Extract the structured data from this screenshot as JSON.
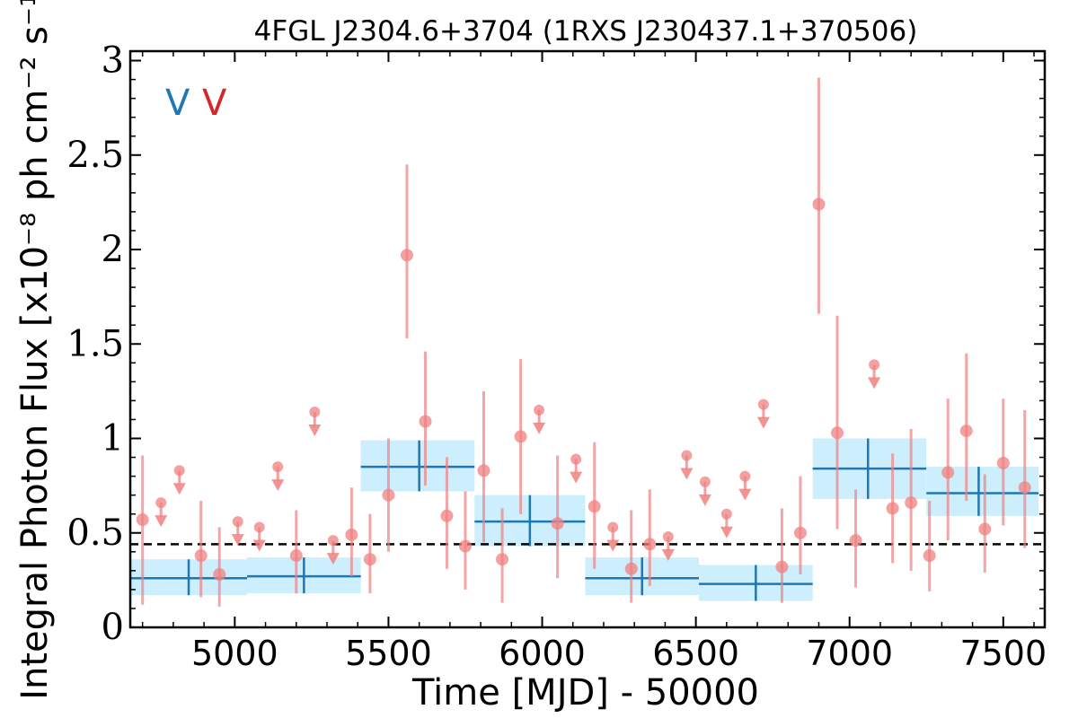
{
  "chart_data": {
    "type": "scatter",
    "title": "4FGL J2304.6+3704 (1RXS J230437.1+370506)",
    "xlabel": "Time [MJD] - 50000",
    "ylabel": "Integral Photon Flux [x10⁻⁸ ph cm⁻² s⁻¹]",
    "xlim": [
      4660,
      7635
    ],
    "ylim": [
      0,
      3.05
    ],
    "x_ticks": [
      5000,
      5500,
      6000,
      6500,
      7000,
      7500
    ],
    "x_tick_labels": [
      "5000",
      "5500",
      "6000",
      "6500",
      "7000",
      "7500"
    ],
    "y_ticks": [
      0,
      0.5,
      1,
      1.5,
      2,
      2.5,
      3
    ],
    "y_tick_labels": [
      "0",
      "0.5",
      "1",
      "1.5",
      "2",
      "2.5",
      "3"
    ],
    "grid": false,
    "legend_labels": [
      {
        "text": "V",
        "color": "#1f77b4"
      },
      {
        "text": "V",
        "color": "#d62728"
      }
    ],
    "colors": {
      "points": "#f08080",
      "bins": "#1f77b4",
      "bin_band": "#cdeefc",
      "mean_line": "#000000"
    },
    "mean_flux": 0.44,
    "detections": [
      {
        "x": 4700,
        "y": 0.57,
        "lo": 0.12,
        "hi": 0.91
      },
      {
        "x": 4890,
        "y": 0.38,
        "lo": 0.16,
        "hi": 0.67
      },
      {
        "x": 4950,
        "y": 0.28,
        "lo": 0.11,
        "hi": 0.53
      },
      {
        "x": 5200,
        "y": 0.38,
        "lo": 0.18,
        "hi": 0.62
      },
      {
        "x": 5380,
        "y": 0.49,
        "lo": 0.27,
        "hi": 0.74
      },
      {
        "x": 5440,
        "y": 0.36,
        "lo": 0.18,
        "hi": 0.6
      },
      {
        "x": 5500,
        "y": 0.7,
        "lo": 0.4,
        "hi": 1.0
      },
      {
        "x": 5560,
        "y": 1.97,
        "lo": 1.53,
        "hi": 2.45
      },
      {
        "x": 5620,
        "y": 1.09,
        "lo": 0.75,
        "hi": 1.46
      },
      {
        "x": 5690,
        "y": 0.59,
        "lo": 0.31,
        "hi": 0.9
      },
      {
        "x": 5750,
        "y": 0.43,
        "lo": 0.2,
        "hi": 0.72
      },
      {
        "x": 5810,
        "y": 0.83,
        "lo": 0.45,
        "hi": 1.25
      },
      {
        "x": 5870,
        "y": 0.36,
        "lo": 0.13,
        "hi": 0.63
      },
      {
        "x": 5930,
        "y": 1.01,
        "lo": 0.6,
        "hi": 1.42
      },
      {
        "x": 6050,
        "y": 0.55,
        "lo": 0.26,
        "hi": 0.91
      },
      {
        "x": 6170,
        "y": 0.64,
        "lo": 0.31,
        "hi": 0.98
      },
      {
        "x": 6290,
        "y": 0.31,
        "lo": 0.13,
        "hi": 0.62
      },
      {
        "x": 6350,
        "y": 0.44,
        "lo": 0.22,
        "hi": 0.73
      },
      {
        "x": 6780,
        "y": 0.32,
        "lo": 0.13,
        "hi": 0.63
      },
      {
        "x": 6840,
        "y": 0.5,
        "lo": 0.28,
        "hi": 0.8
      },
      {
        "x": 6900,
        "y": 2.24,
        "lo": 1.66,
        "hi": 2.91
      },
      {
        "x": 6960,
        "y": 1.03,
        "lo": 0.52,
        "hi": 1.65
      },
      {
        "x": 7020,
        "y": 0.46,
        "lo": 0.21,
        "hi": 0.73
      },
      {
        "x": 7140,
        "y": 0.63,
        "lo": 0.34,
        "hi": 0.92
      },
      {
        "x": 7200,
        "y": 0.66,
        "lo": 0.3,
        "hi": 1.05
      },
      {
        "x": 7260,
        "y": 0.38,
        "lo": 0.19,
        "hi": 0.67
      },
      {
        "x": 7320,
        "y": 0.82,
        "lo": 0.46,
        "hi": 1.21
      },
      {
        "x": 7380,
        "y": 1.04,
        "lo": 0.67,
        "hi": 1.45
      },
      {
        "x": 7440,
        "y": 0.52,
        "lo": 0.29,
        "hi": 0.81
      },
      {
        "x": 7500,
        "y": 0.87,
        "lo": 0.54,
        "hi": 1.21
      },
      {
        "x": 7570,
        "y": 0.74,
        "lo": 0.42,
        "hi": 1.15
      }
    ],
    "upper_limits": [
      {
        "x": 4760,
        "y": 0.66
      },
      {
        "x": 4820,
        "y": 0.83
      },
      {
        "x": 5010,
        "y": 0.56
      },
      {
        "x": 5080,
        "y": 0.53
      },
      {
        "x": 5140,
        "y": 0.85
      },
      {
        "x": 5260,
        "y": 1.14
      },
      {
        "x": 5320,
        "y": 0.46
      },
      {
        "x": 5990,
        "y": 1.15
      },
      {
        "x": 6110,
        "y": 0.89
      },
      {
        "x": 6230,
        "y": 0.53
      },
      {
        "x": 6410,
        "y": 0.48
      },
      {
        "x": 6470,
        "y": 0.91
      },
      {
        "x": 6530,
        "y": 0.77
      },
      {
        "x": 6600,
        "y": 0.6
      },
      {
        "x": 6660,
        "y": 0.8
      },
      {
        "x": 6720,
        "y": 1.18
      },
      {
        "x": 7080,
        "y": 1.39
      }
    ],
    "bins": [
      {
        "x0": 4660,
        "x1": 5040,
        "xc": 4850,
        "y": 0.26,
        "ylo": 0.17,
        "yhi": 0.36
      },
      {
        "x0": 5040,
        "x1": 5410,
        "xc": 5225,
        "y": 0.27,
        "ylo": 0.18,
        "yhi": 0.37
      },
      {
        "x0": 5410,
        "x1": 5780,
        "xc": 5600,
        "y": 0.85,
        "ylo": 0.72,
        "yhi": 0.99
      },
      {
        "x0": 5780,
        "x1": 6140,
        "xc": 5960,
        "y": 0.56,
        "ylo": 0.43,
        "yhi": 0.7
      },
      {
        "x0": 6140,
        "x1": 6510,
        "xc": 6325,
        "y": 0.26,
        "ylo": 0.17,
        "yhi": 0.37
      },
      {
        "x0": 6510,
        "x1": 6880,
        "xc": 6695,
        "y": 0.23,
        "ylo": 0.14,
        "yhi": 0.33
      },
      {
        "x0": 6880,
        "x1": 7250,
        "xc": 7060,
        "y": 0.84,
        "ylo": 0.68,
        "yhi": 1.0
      },
      {
        "x0": 7250,
        "x1": 7615,
        "xc": 7420,
        "y": 0.71,
        "ylo": 0.59,
        "yhi": 0.85
      }
    ]
  }
}
